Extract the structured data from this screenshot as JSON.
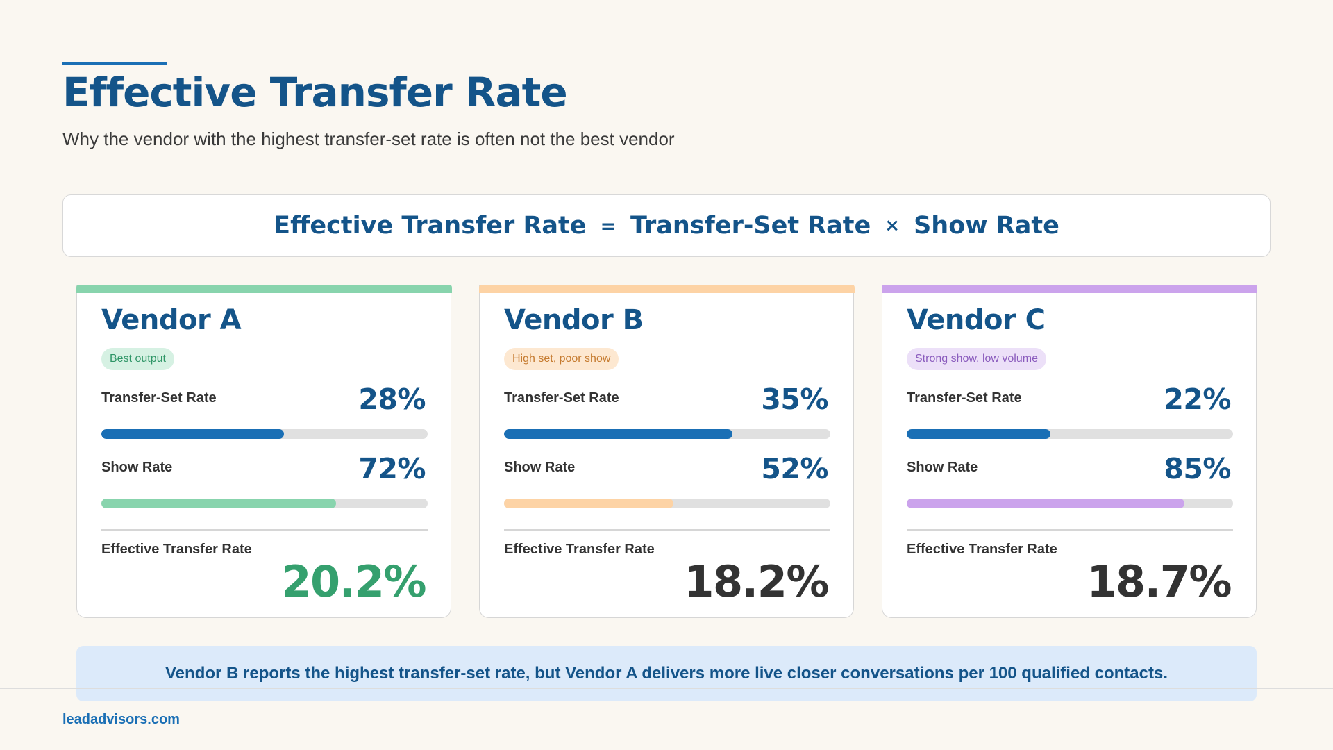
{
  "header": {
    "title": "Effective Transfer Rate",
    "subtitle": "Why the vendor with the highest transfer-set rate is often not the best vendor"
  },
  "formula": {
    "result": "Effective Transfer Rate",
    "equals": "=",
    "term1": "Transfer-Set Rate",
    "times": "×",
    "term2": "Show Rate"
  },
  "vendors": [
    {
      "name": "Vendor A",
      "badge": "Best output",
      "accent_color": "#88d4ad",
      "badge_bg": "#d6f1e3",
      "badge_text_color": "#2e9566",
      "transfer_set_label": "Transfer-Set Rate",
      "transfer_set_value": "28%",
      "transfer_set_fraction": 0.28,
      "show_label": "Show Rate",
      "show_value": "72%",
      "show_fraction": 0.72,
      "effective_label": "Effective Transfer Rate",
      "effective_value": "20.2%",
      "effective_color": "#35a06e"
    },
    {
      "name": "Vendor B",
      "badge": "High set, poor show",
      "accent_color": "#fdd3a5",
      "badge_bg": "#fde8d1",
      "badge_text_color": "#c57a2e",
      "transfer_set_label": "Transfer-Set Rate",
      "transfer_set_value": "35%",
      "transfer_set_fraction": 0.35,
      "show_label": "Show Rate",
      "show_value": "52%",
      "show_fraction": 0.52,
      "effective_label": "Effective Transfer Rate",
      "effective_value": "18.2%",
      "effective_color": "#333333"
    },
    {
      "name": "Vendor C",
      "badge": "Strong show, low volume",
      "accent_color": "#cba3ec",
      "badge_bg": "#ece0f8",
      "badge_text_color": "#8a5bbd",
      "transfer_set_label": "Transfer-Set Rate",
      "transfer_set_value": "22%",
      "transfer_set_fraction": 0.22,
      "show_label": "Show Rate",
      "show_value": "85%",
      "show_fraction": 0.85,
      "effective_label": "Effective Transfer Rate",
      "effective_value": "18.7%",
      "effective_color": "#333333"
    }
  ],
  "transfer_bar_color": "#1a6fb5",
  "note": "Vendor B reports the highest transfer-set rate, but Vendor A delivers more live closer conversations per 100 qualified contacts.",
  "footer": {
    "url": "leadadvisors.com"
  }
}
